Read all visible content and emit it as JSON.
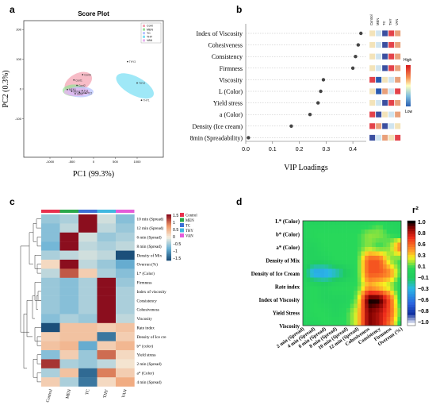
{
  "panels": {
    "a": {
      "letter": "a"
    },
    "b": {
      "letter": "b"
    },
    "c": {
      "letter": "c"
    },
    "d": {
      "letter": "d"
    }
  },
  "groups": [
    "Control",
    "MEN",
    "TC",
    "THY",
    "VAN"
  ],
  "group_colors": [
    "#e8304e",
    "#2aa84a",
    "#3b6fd6",
    "#40b8e0",
    "#e45cd8"
  ],
  "chart_data": [
    {
      "panel": "a",
      "type": "scatter",
      "title": "Score Plot",
      "xlabel": "PC1 (99.3%)",
      "ylabel": "PC2 (0.3%)",
      "xlim": [
        -1600,
        1600
      ],
      "ylim": [
        -230,
        230
      ],
      "xticks": [
        "-1000",
        "-500",
        "0",
        "500",
        "1000"
      ],
      "yticks": [
        "-100",
        "0",
        "100",
        "200"
      ],
      "legend": {
        "placement": "top-right",
        "entries": [
          "Cont",
          "MEN",
          "TC",
          "THY",
          "VAN"
        ]
      },
      "ellipses": [
        {
          "name": "Cont",
          "color": "#f4a6b4",
          "cx": -350,
          "cy": 22,
          "rx": 340,
          "ry": 30,
          "angle": -28
        },
        {
          "name": "MEN",
          "color": "#9ae09a",
          "cx": -450,
          "cy": -5,
          "rx": 260,
          "ry": 20,
          "angle": 0
        },
        {
          "name": "TC",
          "color": "#b9c4ff",
          "cx": -300,
          "cy": -10,
          "rx": 300,
          "ry": 18,
          "angle": 0
        },
        {
          "name": "VAN",
          "color": "#e8b4f0",
          "cx": -380,
          "cy": -10,
          "rx": 300,
          "ry": 14,
          "angle": 0
        },
        {
          "name": "THY",
          "color": "#7fe0f4",
          "cx": 950,
          "cy": 10,
          "rx": 210,
          "ry": 70,
          "angle": -62
        }
      ],
      "points": [
        {
          "name": "THY",
          "x": 780,
          "y": 92,
          "label": "THY3"
        },
        {
          "name": "THY",
          "x": 1000,
          "y": 20,
          "label": "THY2"
        },
        {
          "name": "THY",
          "x": 1100,
          "y": -38,
          "label": "THY1"
        },
        {
          "name": "Cont",
          "x": -250,
          "y": 48,
          "label": "Cont3"
        },
        {
          "name": "Cont",
          "x": -450,
          "y": 30,
          "label": "Cont1"
        },
        {
          "name": "Cont",
          "x": -380,
          "y": 12,
          "label": "Cont2"
        },
        {
          "name": "MEN",
          "x": -600,
          "y": -2,
          "label": "MEN1"
        },
        {
          "name": "MEN",
          "x": -500,
          "y": -8,
          "label": "MEN2"
        },
        {
          "name": "TC",
          "x": -260,
          "y": -6,
          "label": "TC1"
        },
        {
          "name": "TC",
          "x": -180,
          "y": -14,
          "label": "TC2"
        },
        {
          "name": "VAN",
          "x": -420,
          "y": -16,
          "label": "VAN1"
        },
        {
          "name": "VAN",
          "x": -320,
          "y": -12,
          "label": "VAN2"
        }
      ]
    },
    {
      "panel": "b",
      "type": "scatter",
      "xlabel": "VIP Loadings",
      "xlim": [
        0,
        0.45
      ],
      "xticks": [
        "0.0",
        "0.1",
        "0.2",
        "0.3",
        "0.4"
      ],
      "categories": [
        "Index of Viscosity",
        "Cohesiveness",
        "Consistency",
        "Firmness",
        "Viscosity",
        "L (Color)",
        "Yield stress",
        "a (Color)",
        "Density (Ice cream)",
        "8min (Spreadability)"
      ],
      "values": [
        0.43,
        0.42,
        0.41,
        0.4,
        0.29,
        0.28,
        0.27,
        0.24,
        0.17,
        0.01
      ],
      "side_columns": [
        "Control",
        "MEN",
        "TC",
        "THY",
        "VAN"
      ],
      "side_grid": [
        [
          "#f3e3b9",
          "#cfe4f0",
          "#3b4fa0",
          "#e3424a",
          "#e9a07a"
        ],
        [
          "#f3e3b9",
          "#cfe4f0",
          "#3b4fa0",
          "#e3424a",
          "#e9a07a"
        ],
        [
          "#f3e3b9",
          "#cfe4f0",
          "#3b4fa0",
          "#e3424a",
          "#e9a07a"
        ],
        [
          "#f3e3b9",
          "#cfe4f0",
          "#3b4fa0",
          "#e3424a",
          "#e9a07a"
        ],
        [
          "#e3424a",
          "#2a5ab0",
          "#f3e3b9",
          "#cfe4f0",
          "#e9a07a"
        ],
        [
          "#f3e3b9",
          "#2a5ab0",
          "#e9a07a",
          "#cfe4f0",
          "#e3424a"
        ],
        [
          "#f3e3b9",
          "#cfe4f0",
          "#3b4fa0",
          "#e3424a",
          "#e9a07a"
        ],
        [
          "#e3424a",
          "#3b4fa0",
          "#f3e3b9",
          "#cfe4f0",
          "#e9a07a"
        ],
        [
          "#e3424a",
          "#e9a07a",
          "#3b4fa0",
          "#cfe4f0",
          "#f3e3b9"
        ],
        [
          "#3b4fa0",
          "#cfe4f0",
          "#e9a07a",
          "#f3e3b9",
          "#e3424a"
        ]
      ],
      "scale_labels": [
        "High",
        "Low"
      ]
    },
    {
      "panel": "c",
      "type": "heatmap",
      "x": [
        "Control",
        "MEN",
        "TC",
        "THY",
        "VAN"
      ],
      "rows": [
        "10 min (Spread)",
        "12 min (Spread)",
        "6 min (Spread)",
        "8 min (Spread)",
        "Density  of Mix",
        "Overrun (%)",
        "L* (Color)",
        "Firmness",
        "Index of viscosity",
        "Consistency",
        "Cohesiveness",
        "Viscosity",
        "Rate index",
        "Density  of Ice cre",
        "b* (color)",
        "Yield stress",
        "2 min (Spread)",
        "a* (Color)",
        "4 min (Spread)"
      ],
      "values": [
        [
          -0.5,
          -0.4,
          1.6,
          -0.2,
          -0.6
        ],
        [
          -0.6,
          -0.3,
          1.6,
          -0.3,
          -0.5
        ],
        [
          -0.6,
          1.5,
          -0.2,
          -0.5,
          -0.4
        ],
        [
          -0.7,
          1.5,
          -0.3,
          -0.4,
          -0.3
        ],
        [
          -0.4,
          -0.3,
          -0.2,
          -0.3,
          -1.5
        ],
        [
          0.2,
          1.5,
          -0.3,
          -0.5,
          -0.8
        ],
        [
          -0.3,
          1.1,
          0.3,
          -0.4,
          -0.6
        ],
        [
          -0.5,
          -0.6,
          -0.4,
          1.8,
          -0.5
        ],
        [
          -0.5,
          -0.6,
          -0.4,
          1.8,
          -0.4
        ],
        [
          -0.5,
          -0.6,
          -0.4,
          1.8,
          -0.4
        ],
        [
          -0.5,
          -0.6,
          -0.4,
          1.8,
          -0.4
        ],
        [
          -0.6,
          -0.4,
          -0.5,
          1.7,
          -0.3
        ],
        [
          -1.6,
          0.4,
          0.4,
          0.3,
          0.4
        ],
        [
          0.3,
          0.4,
          0.4,
          -1.2,
          0.3
        ],
        [
          0.4,
          0.5,
          -0.8,
          0.3,
          0.5
        ],
        [
          -0.6,
          0.3,
          -0.5,
          1.0,
          0.2
        ],
        [
          1.3,
          -0.4,
          -0.5,
          -0.3,
          0.1
        ],
        [
          -0.4,
          0.4,
          -1.3,
          0.9,
          0.3
        ],
        [
          0.3,
          -0.4,
          -1.2,
          0.2,
          0.6
        ]
      ],
      "colorbar": {
        "ticks": [
          "1.5",
          "1",
          "0.5",
          "0",
          "−0.5",
          "−1",
          "−1.5"
        ],
        "range": [
          -1.5,
          1.5
        ]
      },
      "legend": {
        "placement": "top-right",
        "entries": [
          "Control",
          "MEN",
          "TC",
          "THY",
          "VAN"
        ]
      }
    },
    {
      "panel": "d",
      "type": "heatmap",
      "x": [
        "2 min (Spread)",
        "4 min (Spread)",
        "6 min (Spread)",
        "8 min (Spread)",
        "10 min (Spread)",
        "12 min (Spread)",
        "Cohesiveness",
        "Consistency",
        "Firmness",
        "Overrun (%)"
      ],
      "rows": [
        "L* (Color)",
        "b* (Color)",
        "a* (Color)",
        "Density of Mix",
        "Density of Ice Cream",
        "Rate index",
        "Index of Viscosity",
        "Yield Stress",
        "Viscosity"
      ],
      "values": [
        [
          0.0,
          0.0,
          0.0,
          0.0,
          0.0,
          0.0,
          0.0,
          0.1,
          0.0,
          0.0
        ],
        [
          0.0,
          0.1,
          0.1,
          0.1,
          0.1,
          0.1,
          0.2,
          0.2,
          0.1,
          0.0
        ],
        [
          0.0,
          0.0,
          0.1,
          0.1,
          0.1,
          0.1,
          0.2,
          0.1,
          0.2,
          0.6
        ],
        [
          0.0,
          0.0,
          0.0,
          0.1,
          0.1,
          0.1,
          0.6,
          0.6,
          0.2,
          0.1
        ],
        [
          0.0,
          -0.4,
          -0.4,
          -0.3,
          -0.1,
          0.1,
          0.6,
          0.6,
          0.5,
          0.1
        ],
        [
          0.0,
          0.1,
          0.0,
          0.1,
          0.1,
          0.1,
          0.4,
          0.3,
          0.2,
          0.0
        ],
        [
          0.0,
          0.1,
          0.0,
          0.0,
          0.0,
          0.2,
          1.0,
          1.0,
          0.6,
          0.0
        ],
        [
          0.0,
          0.1,
          0.1,
          0.0,
          0.1,
          0.3,
          0.9,
          0.8,
          0.6,
          0.1
        ],
        [
          0.0,
          0.0,
          0.1,
          0.1,
          0.1,
          0.3,
          0.9,
          0.8,
          0.5,
          0.0
        ]
      ],
      "colorbar": {
        "title": "r²",
        "ticks": [
          "1.0",
          "0.8",
          "0.6",
          "0.3",
          "0.1",
          "−0.1",
          "−0.3",
          "−0.6",
          "−0.8",
          "−1.0"
        ],
        "range": [
          -1,
          1
        ]
      }
    }
  ]
}
